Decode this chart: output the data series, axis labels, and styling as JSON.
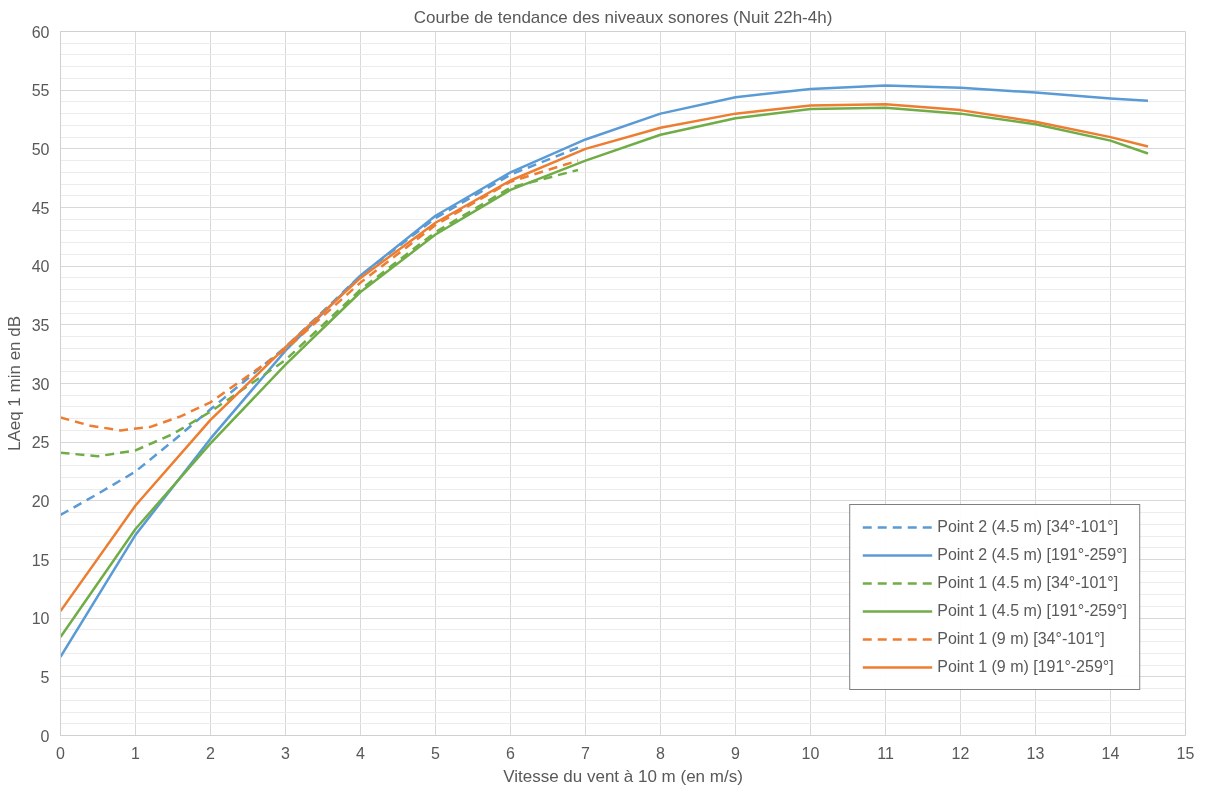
{
  "chart_data": {
    "type": "line",
    "title": "Courbe de tendance des niveaux sonores (Nuit 22h-4h)",
    "xlabel": "Vitesse du vent à 10 m (en m/s)",
    "ylabel": "LAeq 1 min en dB",
    "xlim": [
      0,
      15
    ],
    "xticks": [
      0,
      1,
      2,
      3,
      4,
      5,
      6,
      7,
      8,
      9,
      10,
      11,
      12,
      13,
      14,
      15
    ],
    "ylim": [
      0,
      60
    ],
    "yticks": [
      0,
      5,
      10,
      15,
      20,
      25,
      30,
      35,
      40,
      45,
      50,
      55,
      60
    ],
    "grid": true,
    "legend": "bottom right",
    "series": [
      {
        "name": "Point 2 (4.5 m) [34°-101°]",
        "color": "#5b9bd5",
        "line_style": "dashed",
        "x": [
          0,
          0.5,
          1,
          1.5,
          2,
          3,
          4,
          5,
          6,
          6.9
        ],
        "values": [
          18.8,
          20.6,
          22.5,
          25.1,
          27.8,
          33.1,
          39.2,
          44.1,
          47.8,
          50.1
        ]
      },
      {
        "name": "Point 2 (4.5 m) [191°-259°]",
        "color": "#5b9bd5",
        "line_style": "solid",
        "x": [
          0,
          1,
          2,
          3,
          4,
          5,
          6,
          7,
          8,
          9,
          10,
          11,
          12,
          13,
          14,
          14.5
        ],
        "values": [
          6.7,
          17.1,
          25.3,
          32.8,
          39.2,
          44.3,
          48.0,
          50.8,
          53.0,
          54.4,
          55.1,
          55.4,
          55.2,
          54.8,
          54.3,
          54.1
        ]
      },
      {
        "name": "Point 1 (4.5 m) [34°-101°]",
        "color": "#70ad47",
        "line_style": "dashed",
        "x": [
          0,
          0.5,
          1,
          1.5,
          2,
          3,
          4,
          5,
          6,
          6.9
        ],
        "values": [
          24.1,
          23.8,
          24.3,
          25.7,
          27.6,
          32.0,
          38.0,
          42.9,
          46.7,
          48.2
        ]
      },
      {
        "name": "Point 1 (4.5 m) [191°-259°]",
        "color": "#70ad47",
        "line_style": "solid",
        "x": [
          0,
          1,
          2,
          3,
          4,
          5,
          6,
          7,
          8,
          9,
          10,
          11,
          12,
          13,
          14,
          14.5
        ],
        "values": [
          8.4,
          17.6,
          24.9,
          31.6,
          37.8,
          42.7,
          46.5,
          49.0,
          51.2,
          52.6,
          53.4,
          53.5,
          53.0,
          52.1,
          50.7,
          49.6
        ]
      },
      {
        "name": "Point 1 (9 m) [34°-101°]",
        "color": "#ed7d31",
        "line_style": "dashed",
        "x": [
          0,
          0.4,
          0.8,
          1.2,
          1.6,
          2,
          3,
          4,
          5,
          6,
          6.9
        ],
        "values": [
          27.1,
          26.4,
          26.0,
          26.3,
          27.2,
          28.4,
          32.9,
          38.6,
          43.5,
          47.2,
          49.0
        ]
      },
      {
        "name": "Point 1 (9 m) [191°-259°]",
        "color": "#ed7d31",
        "line_style": "solid",
        "x": [
          0,
          1,
          2,
          3,
          4,
          5,
          6,
          7,
          8,
          9,
          10,
          11,
          12,
          13,
          14,
          14.5
        ],
        "values": [
          10.6,
          19.6,
          26.9,
          33.1,
          39.0,
          43.7,
          47.3,
          50.0,
          51.8,
          53.0,
          53.7,
          53.8,
          53.3,
          52.3,
          51.0,
          50.2
        ]
      }
    ]
  }
}
